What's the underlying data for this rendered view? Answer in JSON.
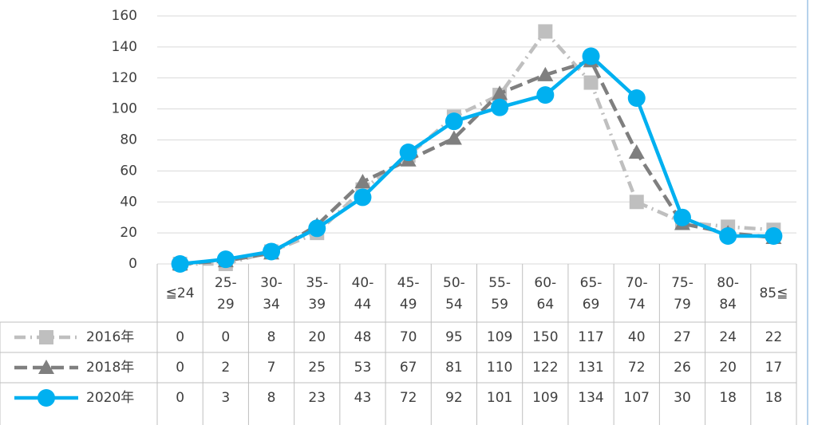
{
  "chart_data": {
    "type": "line",
    "categories": [
      "≦24",
      "25-29",
      "30-34",
      "35-39",
      "40-44",
      "45-49",
      "50-54",
      "55-59",
      "60-64",
      "65-69",
      "70-74",
      "75-79",
      "80-84",
      "85≦"
    ],
    "series": [
      {
        "name": "2016年",
        "color": "#bfbfbf",
        "marker": "square",
        "dash": "dashdot",
        "values": [
          0,
          0,
          8,
          20,
          48,
          70,
          95,
          109,
          150,
          117,
          40,
          27,
          24,
          22
        ]
      },
      {
        "name": "2018年",
        "color": "#7f7f7f",
        "marker": "triangle",
        "dash": "dash",
        "values": [
          0,
          2,
          7,
          25,
          53,
          67,
          81,
          110,
          122,
          131,
          72,
          26,
          20,
          17
        ]
      },
      {
        "name": "2020年",
        "color": "#00b0f0",
        "marker": "circle",
        "dash": "solid",
        "values": [
          0,
          3,
          8,
          23,
          43,
          72,
          92,
          101,
          109,
          134,
          107,
          30,
          18,
          18
        ]
      }
    ],
    "ylim": [
      0,
      160
    ],
    "yticks": [
      0,
      20,
      40,
      60,
      80,
      100,
      120,
      140,
      160
    ],
    "grid": true
  }
}
